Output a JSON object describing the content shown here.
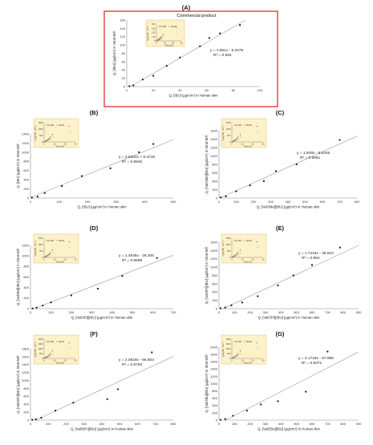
{
  "figure": {
    "panel_a_subtitle": "Commercial product",
    "frame_color": "#e03030",
    "inset_bg": "#fdf1c8",
    "inset_border": "#e0c070",
    "legend_hs": "HS",
    "legend_strat": "Str-M"
  },
  "chart_data": [
    {
      "panel": "(A)",
      "type": "scatter",
      "xlabel": "Q, [IBU] (µg/cm²) in Human skin",
      "ylabel": "Q, [IBU] (µg/cm²) in Strat-M®",
      "xlim": [
        0,
        100
      ],
      "ylim": [
        0,
        160
      ],
      "xticks": [
        "0",
        "20",
        "40",
        "60",
        "80",
        "100"
      ],
      "yticks": [
        "0",
        "20",
        "40",
        "60",
        "80",
        "100",
        "120",
        "140",
        "160"
      ],
      "equation": "y = 1.851x - 5.2079",
      "r2": "R² = 0.984",
      "points": [
        [
          2,
          1
        ],
        [
          5,
          3
        ],
        [
          12,
          17
        ],
        [
          20,
          26
        ],
        [
          30,
          50
        ],
        [
          40,
          70
        ],
        [
          55,
          97
        ],
        [
          62,
          117
        ],
        [
          70,
          128
        ],
        [
          85,
          148
        ]
      ],
      "fit": [
        1.851,
        -5.2079
      ],
      "inset": {
        "ylabel": "Q (µg IBU · cm⁻²)",
        "xlabel": "Time [h]",
        "ymax": 200,
        "yticks": [
          "0",
          "50",
          "100",
          "150",
          "200"
        ],
        "xticks": [
          "0",
          "10",
          "20",
          "30"
        ]
      }
    },
    {
      "panel": "(B)",
      "type": "scatter",
      "xlabel": "Q, [IBU] (µg/cm²) in Human skin",
      "ylabel": "Q, [IBU] (µg/cm²) in Strat-M®",
      "xlim": [
        0,
        500
      ],
      "ylim": [
        0,
        1400
      ],
      "xticks": [
        "0",
        "100",
        "200",
        "300",
        "400",
        "500"
      ],
      "yticks": [
        "0",
        "200",
        "400",
        "600",
        "800",
        "1000",
        "1200",
        "1400"
      ],
      "equation": "y = 2.5302x + 8.4716",
      "r2": "R² = 0.9845",
      "points": [
        [
          5,
          10
        ],
        [
          25,
          30
        ],
        [
          50,
          110
        ],
        [
          110,
          260
        ],
        [
          180,
          480
        ],
        [
          280,
          650
        ],
        [
          380,
          1000
        ],
        [
          430,
          1180
        ]
      ],
      "fit": [
        2.5302,
        8.4716
      ],
      "inset": {
        "ylabel": "Q (µg IBU · cm⁻²)",
        "xlabel": "Time [h]",
        "ymax": 1500,
        "yticks": [
          "0",
          "500",
          "1000",
          "1500"
        ],
        "xticks": [
          "0",
          "10",
          "20",
          "30"
        ]
      }
    },
    {
      "panel": "(C)",
      "type": "scatter",
      "xlabel": "Q, [ValOMe][IBU] (µg/cm²) in Human skin",
      "ylabel": "Q, [ValOMe][IBU] (µg/cm²) in Strat-M®",
      "xlim": [
        0,
        800
      ],
      "ylim": [
        0,
        1600
      ],
      "xticks": [
        "0",
        "100",
        "200",
        "300",
        "400",
        "500",
        "600",
        "700",
        "800"
      ],
      "yticks": [
        "0",
        "200",
        "400",
        "600",
        "800",
        "1000",
        "1200",
        "1400",
        "1600"
      ],
      "equation": "y = 1.849x - 8.6445",
      "r2": "R² = 0.9861",
      "points": [
        [
          10,
          15
        ],
        [
          40,
          40
        ],
        [
          100,
          160
        ],
        [
          180,
          300
        ],
        [
          260,
          400
        ],
        [
          330,
          640
        ],
        [
          450,
          800
        ],
        [
          700,
          1380
        ]
      ],
      "fit": [
        1.849,
        -8.6445
      ],
      "inset": {
        "ylabel": "Q (µg IBU · cm⁻²)",
        "xlabel": "Time [h]",
        "ymax": 1500,
        "yticks": [
          "0",
          "500",
          "1000",
          "1500"
        ],
        "xticks": [
          "0",
          "10",
          "20",
          "30"
        ]
      }
    },
    {
      "panel": "(D)",
      "type": "scatter",
      "xlabel": "Q, [ValOEt][IBU] (µg/cm²) in Human skin",
      "ylabel": "Q, [ValOEt][IBU] (µg/cm²) in Strat-M®",
      "xlim": [
        0,
        700
      ],
      "ylim": [
        0,
        1200
      ],
      "xticks": [
        "0",
        "100",
        "200",
        "300",
        "400",
        "500",
        "600",
        "700"
      ],
      "yticks": [
        "0",
        "200",
        "400",
        "600",
        "800",
        "1000",
        "1200"
      ],
      "equation": "y = 1.4846x - 26.206",
      "r2": "R² = 0.9698",
      "points": [
        [
          10,
          5
        ],
        [
          30,
          20
        ],
        [
          60,
          60
        ],
        [
          100,
          120
        ],
        [
          200,
          250
        ],
        [
          330,
          380
        ],
        [
          450,
          620
        ],
        [
          620,
          960
        ]
      ],
      "fit": [
        1.4846,
        -26.206
      ],
      "inset": {
        "ylabel": "Q (µg IBU · cm⁻²)",
        "xlabel": "Time [h]",
        "ymax": 1500,
        "yticks": [
          "0",
          "500",
          "1000",
          "1500"
        ],
        "xticks": [
          "0",
          "10",
          "20",
          "30"
        ]
      }
    },
    {
      "panel": "(E)",
      "type": "scatter",
      "xlabel": "Q, [ValOPr][IBU] (µg/cm²) in Human skin",
      "ylabel": "Q, [ValOPr][IBU] (µg/cm²) in Strat-M®",
      "xlim": [
        0,
        900
      ],
      "ylim": [
        0,
        1600
      ],
      "xticks": [
        "0",
        "100",
        "200",
        "300",
        "400",
        "500",
        "600",
        "700",
        "800",
        "900"
      ],
      "yticks": [
        "0",
        "200",
        "400",
        "600",
        "800",
        "1000",
        "1200",
        "1400",
        "1600"
      ],
      "equation": "y = 1.7416x - 46.622",
      "r2": "R² = 0.954",
      "points": [
        [
          10,
          10
        ],
        [
          40,
          30
        ],
        [
          80,
          80
        ],
        [
          150,
          150
        ],
        [
          250,
          300
        ],
        [
          380,
          560
        ],
        [
          480,
          800
        ],
        [
          600,
          1050
        ],
        [
          780,
          1470
        ]
      ],
      "fit": [
        1.7416,
        -46.622
      ],
      "inset": {
        "ylabel": "Q (µg IBU · cm⁻²)",
        "xlabel": "Time [h]",
        "ymax": 1500,
        "yticks": [
          "0",
          "500",
          "1000",
          "1500"
        ],
        "xticks": [
          "0",
          "10",
          "20",
          "30"
        ]
      }
    },
    {
      "panel": "(F)",
      "type": "scatter",
      "xlabel": "Q, [ValOiPr][IBU] (µg/cm²) in Human skin",
      "ylabel": "Q, [ValOiPr][IBU] (µg/cm²) in Strat-M®",
      "xlim": [
        0,
        800
      ],
      "ylim": [
        0,
        1800
      ],
      "xticks": [
        "0",
        "100",
        "200",
        "300",
        "400",
        "500",
        "600",
        "700",
        "800"
      ],
      "yticks": [
        "0",
        "200",
        "400",
        "600",
        "800",
        "1000",
        "1200",
        "1400",
        "1600",
        "1800"
      ],
      "equation": "y = 2.0819x - 58.504",
      "r2": "R² = 0.8793",
      "points": [
        [
          10,
          10
        ],
        [
          30,
          20
        ],
        [
          60,
          60
        ],
        [
          140,
          240
        ],
        [
          240,
          440
        ],
        [
          430,
          530
        ],
        [
          490,
          780
        ],
        [
          680,
          1710
        ]
      ],
      "fit": [
        2.0819,
        -58.504
      ],
      "inset": {
        "ylabel": "Q (µg IBU · cm⁻²)",
        "xlabel": "Time [h]",
        "ymax": 2000,
        "yticks": [
          "0",
          "500",
          "1000",
          "1500",
          "2000"
        ],
        "xticks": [
          "0",
          "10",
          "20",
          "30"
        ]
      }
    },
    {
      "panel": "(G)",
      "type": "scatter",
      "xlabel": "Q, [ValOBu][IBU] (µg/cm²) in Human skin",
      "ylabel": "Q, [ValOBu][IBU] (µg/cm²) in Strat-M®",
      "xlim": [
        0,
        900
      ],
      "ylim": [
        0,
        2000
      ],
      "xticks": [
        "0",
        "100",
        "200",
        "300",
        "400",
        "500",
        "600",
        "700",
        "800",
        "900"
      ],
      "yticks": [
        "0",
        "200",
        "400",
        "600",
        "800",
        "1000",
        "1200",
        "1400",
        "1600",
        "1800",
        "2000"
      ],
      "equation": "y = 2.1718x - 87.995",
      "r2": "R² = 0.8371",
      "points": [
        [
          10,
          10
        ],
        [
          40,
          30
        ],
        [
          90,
          120
        ],
        [
          180,
          260
        ],
        [
          270,
          430
        ],
        [
          380,
          520
        ],
        [
          560,
          780
        ],
        [
          700,
          1880
        ]
      ],
      "fit": [
        2.1718,
        -87.995
      ],
      "inset": {
        "ylabel": "Q (µg IBU · cm⁻²)",
        "xlabel": "Time [h]",
        "ymax": 2000,
        "yticks": [
          "0",
          "500",
          "1000",
          "1500",
          "2000"
        ],
        "xticks": [
          "0",
          "10",
          "20",
          "30"
        ]
      }
    }
  ]
}
